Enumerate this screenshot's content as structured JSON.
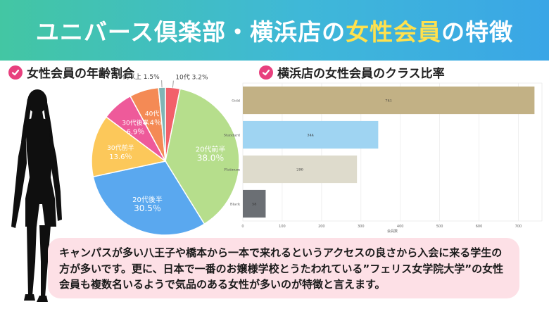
{
  "banner": {
    "title_before": "ユニバース倶楽部・横浜店の",
    "title_highlight": "女性会員",
    "title_after": "の特徴"
  },
  "sections": {
    "age_title": "女性会員の年齢割合",
    "class_title": "横浜店の女性会員のクラス比率"
  },
  "caption": "キャンパスが多い八王子や橋本から一本で来れるというアクセスの良さから入会に来る学生の方が多いです。更に、日本で一番のお嬢様学校とうたわれている”フェリス女学院大学”の女性会員も複数名いるようで気品のある女性が多いのが特徴と言えます。",
  "colors": {
    "banner_start": "#43c6a3",
    "banner_end": "#3aa6e6",
    "highlight": "#ffe14d",
    "check": "#e8407e",
    "caption_bg": "#fde0e6"
  },
  "chart_data": [
    {
      "type": "pie",
      "slices": [
        {
          "label": "10代",
          "value": 3.2,
          "value_text": "3.2％",
          "color": "#f2606a"
        },
        {
          "label": "20代前半",
          "value": 38.0,
          "value_text": "38.0％",
          "color": "#b6de8c"
        },
        {
          "label": "20代後半",
          "value": 30.5,
          "value_text": "30.5％",
          "color": "#5aa8ef"
        },
        {
          "label": "30代前半",
          "value": 13.6,
          "value_text": "13.6％",
          "color": "#fcc85a"
        },
        {
          "label": "30代後半",
          "value": 6.9,
          "value_text": "6.9％",
          "color": "#ee5a9a"
        },
        {
          "label": "40代",
          "value": 6.4,
          "value_text": "6.4％",
          "color": "#f48a55"
        },
        {
          "label": "50代以上",
          "value": 1.5,
          "value_text": "1.5％",
          "color": "#7fb5b5"
        }
      ]
    },
    {
      "type": "bar",
      "orientation": "horizontal",
      "categories": [
        "Gold",
        "Standard",
        "Platinum",
        "Black"
      ],
      "values": [
        741,
        344,
        290,
        58
      ],
      "colors": [
        "#c2b185",
        "#9fd4f2",
        "#dedbcc",
        "#6b6f74"
      ],
      "xlabel": "会員数",
      "xticks": [
        0,
        100,
        200,
        300,
        400,
        500,
        600,
        700
      ],
      "xlim": [
        0,
        760
      ],
      "grid": true
    }
  ]
}
